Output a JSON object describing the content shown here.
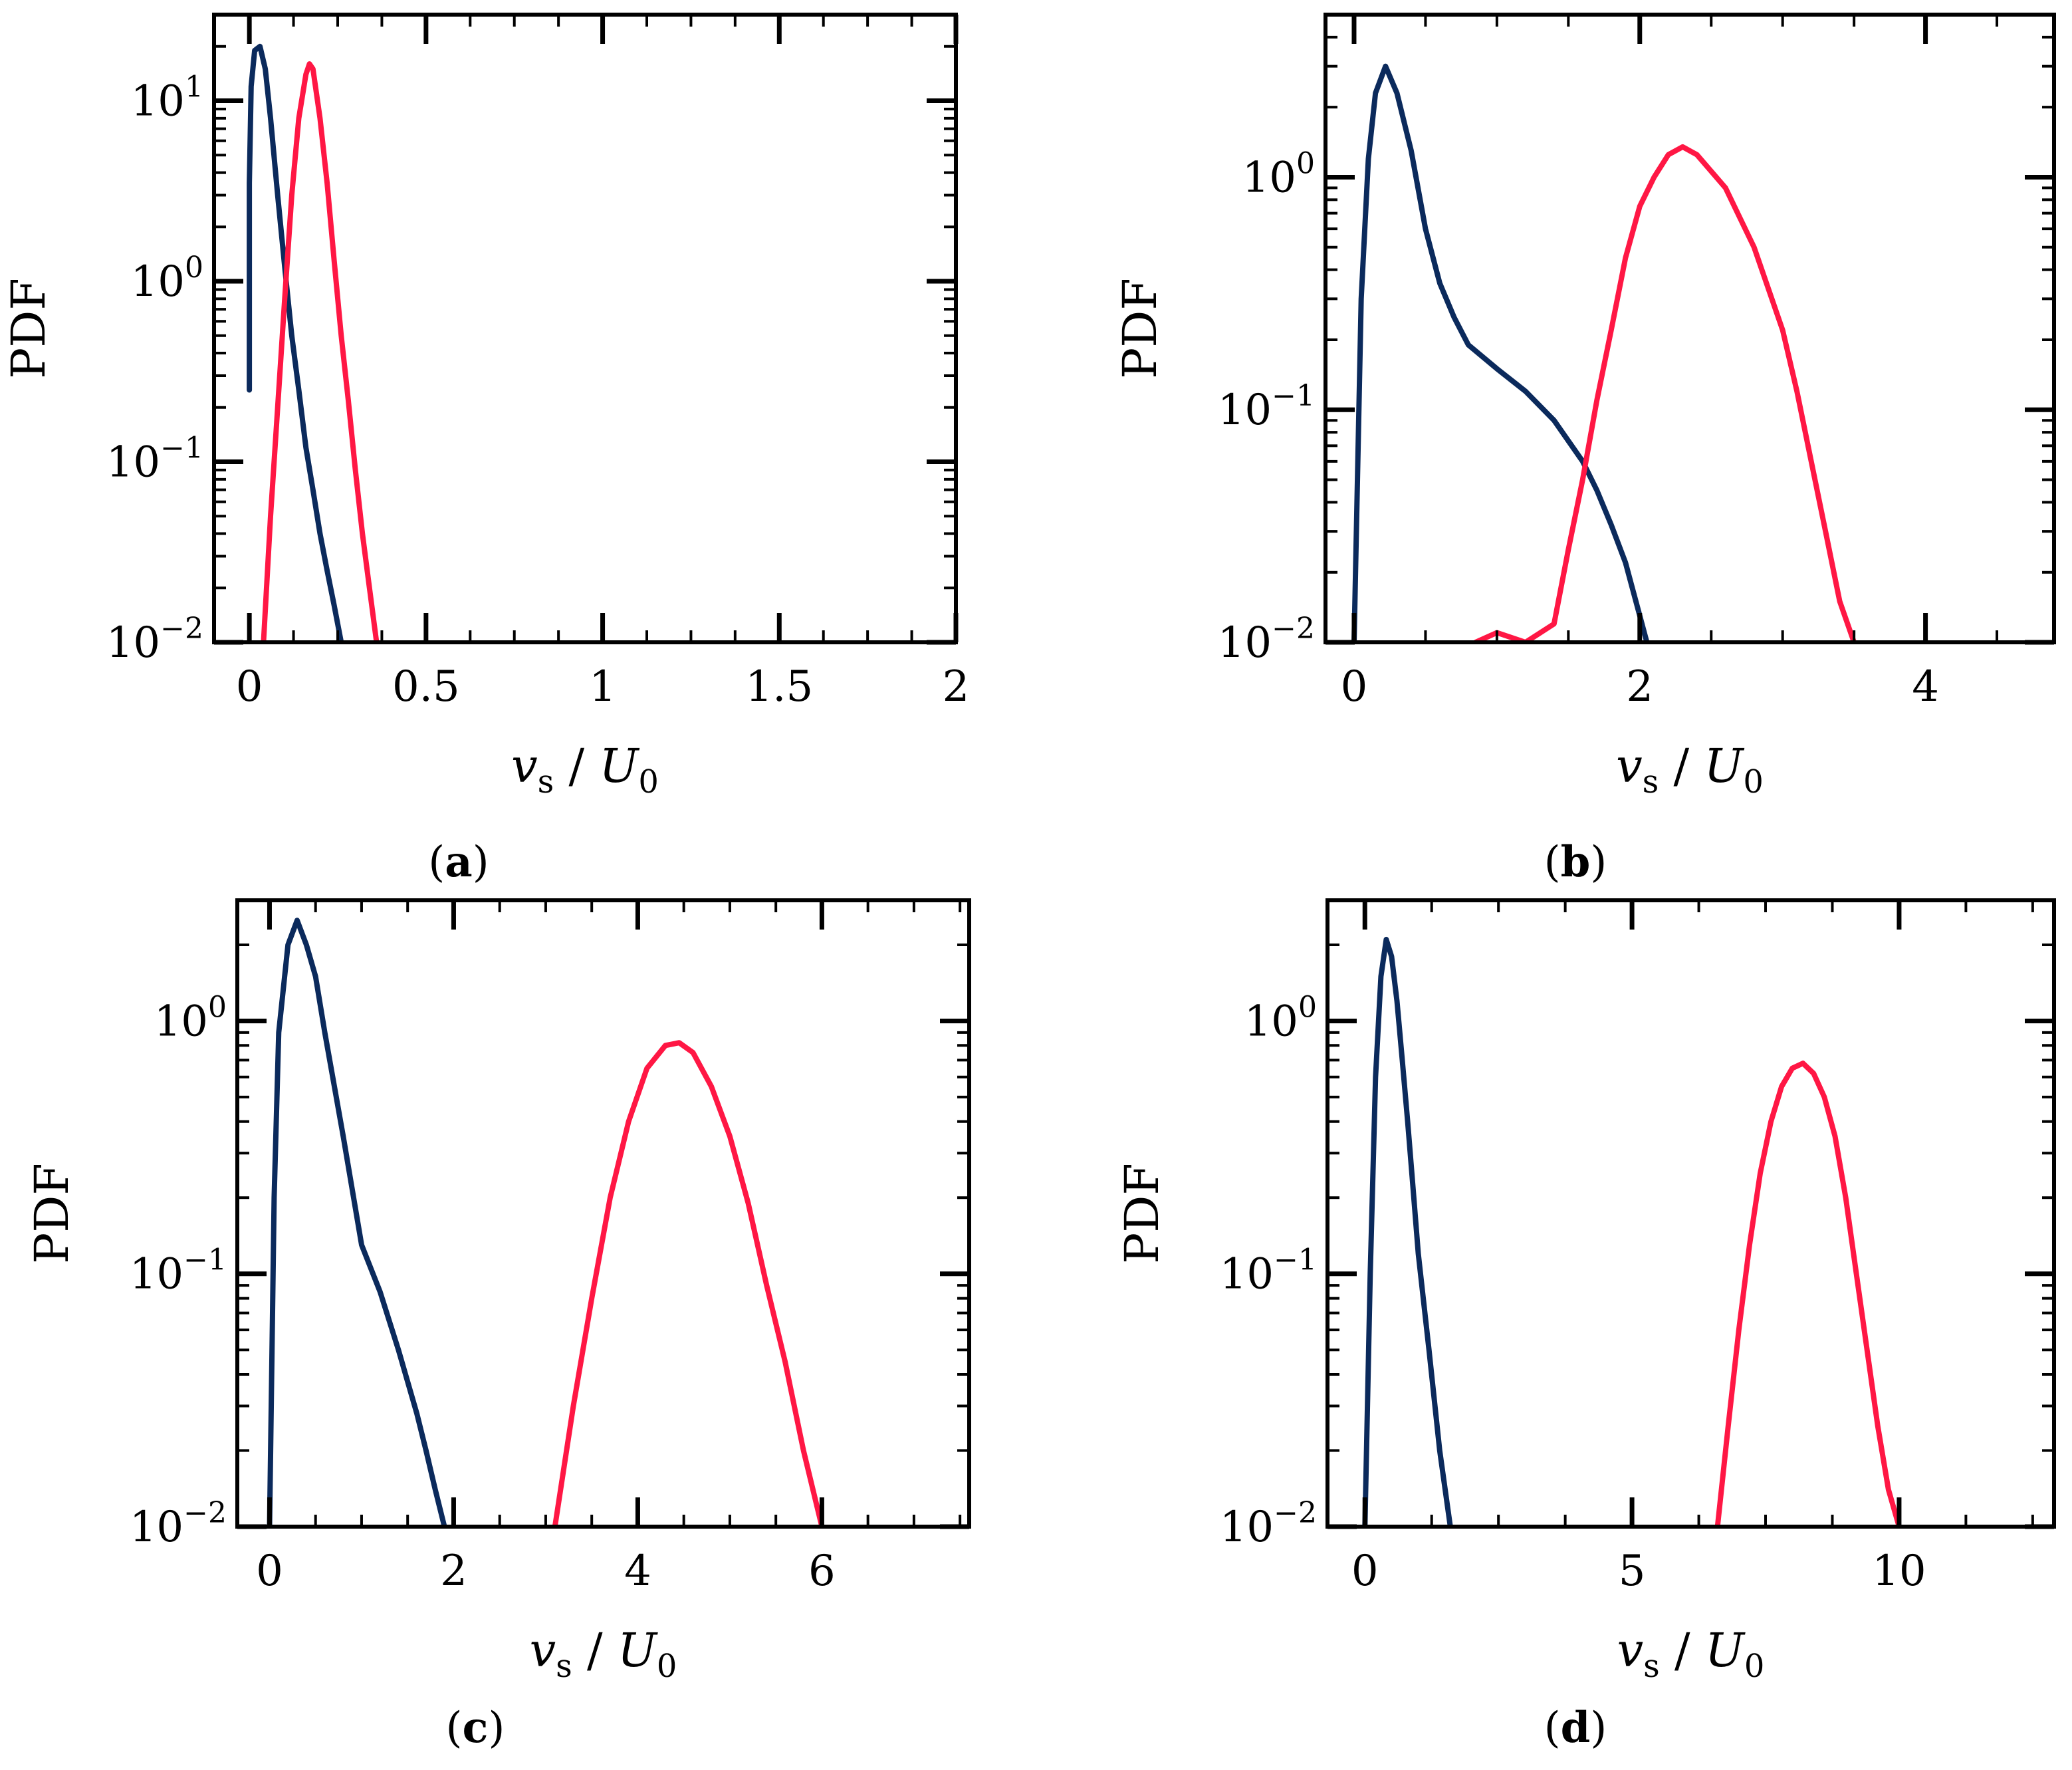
{
  "colors": {
    "series_dark": "#0b2a5c",
    "series_red": "#ff1744"
  },
  "chart_data": [
    {
      "id": "a",
      "panel_label_letter": "a",
      "type": "line",
      "yscale": "log",
      "xlim": [
        -0.1,
        2
      ],
      "ylim": [
        0.01,
        30
      ],
      "xticks": [
        0,
        0.5,
        1,
        1.5,
        2
      ],
      "xtick_labels": [
        "0",
        "0.5",
        "1",
        "1.5",
        "2"
      ],
      "yticks": [
        0.01,
        0.1,
        1,
        10
      ],
      "ytick_bases": [
        "10",
        "10",
        "10",
        "10"
      ],
      "ytick_exps": [
        "−2",
        "−1",
        "0",
        "1"
      ],
      "ylabel": "PDF",
      "xlabel_var": "v",
      "xlabel_sub": "s",
      "xlabel_den": "U",
      "xlabel_den_sub": "0",
      "series": [
        {
          "name": "dark",
          "color_key": "series_dark",
          "x": [
            0.0,
            0.0,
            0.005,
            0.015,
            0.03,
            0.045,
            0.06,
            0.08,
            0.1,
            0.12,
            0.14,
            0.16,
            0.18,
            0.2,
            0.22,
            0.24,
            0.26
          ],
          "y": [
            0.25,
            3.5,
            12,
            19,
            20,
            15,
            8,
            3,
            1.2,
            0.5,
            0.25,
            0.12,
            0.07,
            0.04,
            0.025,
            0.016,
            0.01
          ]
        },
        {
          "name": "red",
          "color_key": "series_red",
          "x": [
            0.04,
            0.06,
            0.08,
            0.1,
            0.12,
            0.14,
            0.16,
            0.17,
            0.18,
            0.2,
            0.22,
            0.24,
            0.26,
            0.28,
            0.3,
            0.32,
            0.34,
            0.36
          ],
          "y": [
            0.01,
            0.05,
            0.2,
            0.8,
            3,
            8,
            14,
            16,
            15,
            8,
            3.5,
            1.3,
            0.5,
            0.22,
            0.09,
            0.04,
            0.02,
            0.01
          ]
        }
      ]
    },
    {
      "id": "b",
      "panel_label_letter": "b",
      "type": "line",
      "yscale": "log",
      "xlim": [
        -0.2,
        4.9
      ],
      "ylim": [
        0.01,
        5
      ],
      "xticks": [
        0,
        2,
        4
      ],
      "xtick_labels": [
        "0",
        "2",
        "4"
      ],
      "yticks": [
        0.01,
        0.1,
        1
      ],
      "ytick_bases": [
        "10",
        "10",
        "10"
      ],
      "ytick_exps": [
        "−2",
        "−1",
        "0"
      ],
      "ylabel": "PDF",
      "xlabel_var": "v",
      "xlabel_sub": "s",
      "xlabel_den": "U",
      "xlabel_den_sub": "0",
      "series": [
        {
          "name": "dark",
          "color_key": "series_dark",
          "x": [
            0.0,
            0.05,
            0.1,
            0.15,
            0.22,
            0.3,
            0.4,
            0.5,
            0.6,
            0.7,
            0.8,
            1.0,
            1.2,
            1.4,
            1.6,
            1.7,
            1.8,
            1.9,
            2.0,
            2.05
          ],
          "y": [
            0.01,
            0.3,
            1.2,
            2.3,
            3.0,
            2.3,
            1.3,
            0.6,
            0.35,
            0.25,
            0.19,
            0.15,
            0.12,
            0.09,
            0.06,
            0.045,
            0.032,
            0.022,
            0.013,
            0.01
          ]
        },
        {
          "name": "red",
          "color_key": "series_red",
          "x": [
            0.85,
            1.0,
            1.2,
            1.4,
            1.5,
            1.6,
            1.7,
            1.8,
            1.9,
            2.0,
            2.1,
            2.2,
            2.3,
            2.4,
            2.6,
            2.8,
            3.0,
            3.1,
            3.2,
            3.3,
            3.4,
            3.5
          ],
          "y": [
            0.01,
            0.011,
            0.01,
            0.012,
            0.025,
            0.05,
            0.11,
            0.22,
            0.45,
            0.75,
            1.0,
            1.25,
            1.35,
            1.25,
            0.9,
            0.5,
            0.22,
            0.12,
            0.06,
            0.03,
            0.015,
            0.01
          ]
        }
      ]
    },
    {
      "id": "c",
      "panel_label_letter": "c",
      "type": "line",
      "yscale": "log",
      "xlim": [
        -0.35,
        7.6
      ],
      "ylim": [
        0.01,
        3
      ],
      "xticks": [
        0,
        2,
        4,
        6
      ],
      "xtick_labels": [
        "0",
        "2",
        "4",
        "6"
      ],
      "yticks": [
        0.01,
        0.1,
        1
      ],
      "ytick_bases": [
        "10",
        "10",
        "10"
      ],
      "ytick_exps": [
        "−2",
        "−1",
        "0"
      ],
      "ylabel": "PDF",
      "xlabel_var": "v",
      "xlabel_sub": "s",
      "xlabel_den": "U",
      "xlabel_den_sub": "0",
      "series": [
        {
          "name": "dark",
          "color_key": "series_dark",
          "x": [
            0.0,
            0.05,
            0.1,
            0.2,
            0.3,
            0.4,
            0.5,
            0.6,
            0.8,
            1.0,
            1.2,
            1.4,
            1.6,
            1.7,
            1.8,
            1.9
          ],
          "y": [
            0.01,
            0.2,
            0.9,
            2.0,
            2.5,
            2.0,
            1.5,
            0.9,
            0.35,
            0.13,
            0.085,
            0.05,
            0.028,
            0.02,
            0.014,
            0.01
          ]
        },
        {
          "name": "red",
          "color_key": "series_red",
          "x": [
            3.1,
            3.3,
            3.5,
            3.7,
            3.9,
            4.1,
            4.3,
            4.45,
            4.6,
            4.8,
            5.0,
            5.2,
            5.4,
            5.6,
            5.8,
            6.0
          ],
          "y": [
            0.01,
            0.03,
            0.08,
            0.2,
            0.4,
            0.65,
            0.8,
            0.82,
            0.75,
            0.55,
            0.35,
            0.19,
            0.09,
            0.045,
            0.02,
            0.01
          ]
        }
      ]
    },
    {
      "id": "d",
      "panel_label_letter": "d",
      "type": "line",
      "yscale": "log",
      "xlim": [
        -0.7,
        12.9
      ],
      "ylim": [
        0.01,
        3
      ],
      "xticks": [
        0,
        5,
        10
      ],
      "xtick_labels": [
        "0",
        "5",
        "10"
      ],
      "yticks": [
        0.01,
        0.1,
        1
      ],
      "ytick_bases": [
        "10",
        "10",
        "10"
      ],
      "ytick_exps": [
        "−2",
        "−1",
        "0"
      ],
      "ylabel": "PDF",
      "xlabel_var": "v",
      "xlabel_sub": "s",
      "xlabel_den": "U",
      "xlabel_den_sub": "0",
      "series": [
        {
          "name": "dark",
          "color_key": "series_dark",
          "x": [
            0.0,
            0.1,
            0.2,
            0.3,
            0.4,
            0.5,
            0.6,
            0.7,
            0.8,
            0.9,
            1.0,
            1.2,
            1.4,
            1.6
          ],
          "y": [
            0.01,
            0.1,
            0.6,
            1.5,
            2.1,
            1.8,
            1.2,
            0.7,
            0.4,
            0.22,
            0.12,
            0.05,
            0.02,
            0.01
          ]
        },
        {
          "name": "red",
          "color_key": "series_red",
          "x": [
            6.6,
            6.8,
            7.0,
            7.2,
            7.4,
            7.6,
            7.8,
            8.0,
            8.2,
            8.4,
            8.6,
            8.8,
            9.0,
            9.2,
            9.4,
            9.6,
            9.8,
            10.0
          ],
          "y": [
            0.01,
            0.025,
            0.06,
            0.13,
            0.25,
            0.4,
            0.55,
            0.65,
            0.68,
            0.62,
            0.5,
            0.35,
            0.2,
            0.1,
            0.05,
            0.025,
            0.014,
            0.01
          ]
        }
      ]
    }
  ]
}
